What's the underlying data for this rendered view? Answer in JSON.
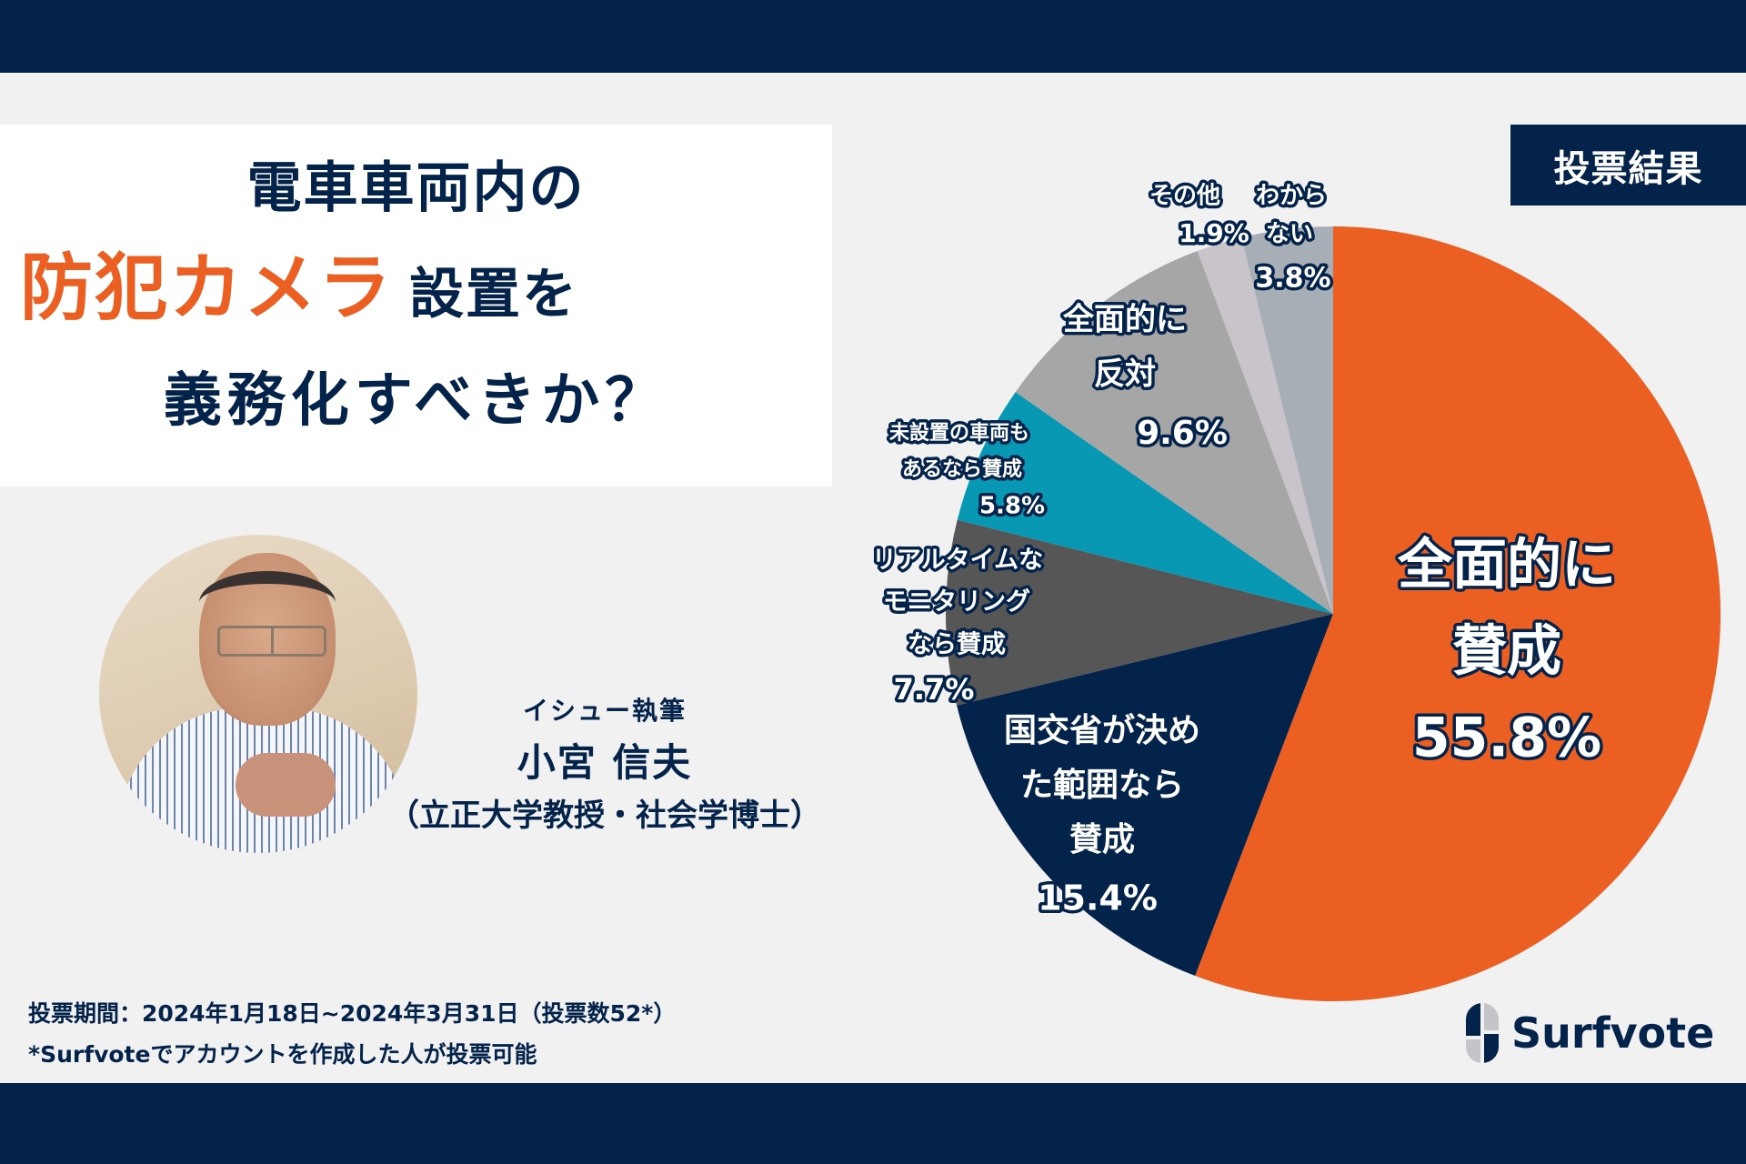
{
  "header": {
    "title_line1": "電車車両内の",
    "title_accent": "防犯カメラ",
    "title_line2_rest": "設置を",
    "title_line3": "義務化すべきか？"
  },
  "badge": {
    "label": "投票結果"
  },
  "author": {
    "role": "イシュー執筆",
    "name": "小宮 信夫",
    "affiliation": "（立正大学教授・社会学博士）",
    "photo_alt": "author-photo"
  },
  "footer": {
    "period": "投票期間：2024年1月18日~2024年3月31日（投票数52*）",
    "note": "*Surfvoteでアカウントを作成した人が投票可能"
  },
  "logo": {
    "text": "Surfvote"
  },
  "colors": {
    "navy": "#03234B",
    "orange": "#EC5F22",
    "background": "#F1F1F1",
    "panel": "#FFFFFF"
  },
  "chart_data": {
    "type": "pie",
    "title": "投票結果",
    "start_angle_deg": 0,
    "direction": "clockwise",
    "total_votes": 52,
    "slices": [
      {
        "label": "全面的に賛成",
        "label_lines": [
          "全面的に",
          "賛成"
        ],
        "value": 55.8,
        "value_label": "55.8%",
        "color": "#EC5F22"
      },
      {
        "label": "国交省が決めた範囲なら賛成",
        "label_lines": [
          "国交省が決め",
          "た範囲なら",
          "賛成"
        ],
        "value": 15.4,
        "value_label": "15.4%",
        "color": "#03234B"
      },
      {
        "label": "リアルタイムなモニタリングなら賛成",
        "label_lines": [
          "リアルタイムな",
          "モニタリング",
          "なら賛成"
        ],
        "value": 7.7,
        "value_label": "7.7%",
        "color": "#565656"
      },
      {
        "label": "未設置の車両もあるなら賛成",
        "label_lines": [
          "未設置の車両も",
          "あるなら賛成"
        ],
        "value": 5.8,
        "value_label": "5.8%",
        "color": "#0898B4"
      },
      {
        "label": "全面的に反対",
        "label_lines": [
          "全面的に",
          "反対"
        ],
        "value": 9.6,
        "value_label": "9.6%",
        "color": "#A6A6A6"
      },
      {
        "label": "その他",
        "label_lines": [
          "その他"
        ],
        "value": 1.9,
        "value_label": "1.9%",
        "color": "#C8C4CA"
      },
      {
        "label": "わからない",
        "label_lines": [
          "わから",
          "ない"
        ],
        "value": 3.8,
        "value_label": "3.8%",
        "color": "#A8AEB6"
      }
    ],
    "legend": "none (labels placed on/near slices)"
  }
}
